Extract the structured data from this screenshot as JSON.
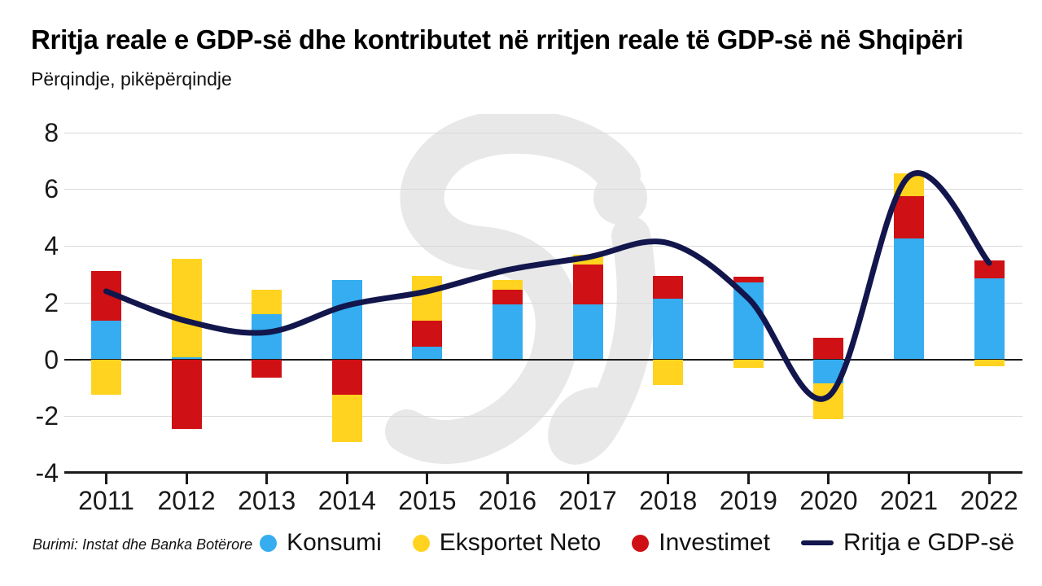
{
  "header": {
    "title": "Rritja reale e GDP-së dhe kontributet në rritjen reale të GDP-së në Shqipëri",
    "subtitle": "Përqindje, pikëpërqindje"
  },
  "footer": {
    "source": "Burimi: Instat dhe Banka Botërore"
  },
  "colors": {
    "konsumi": "#35ADF0",
    "investimet": "#CF1014",
    "eksportet_neto": "#FFD31F",
    "gdp_line": "#12164C",
    "gridline": "#D9D9D9",
    "axis": "#1a1a1a",
    "watermark": "#E8E8E8"
  },
  "legend": [
    {
      "label": "Konsumi",
      "marker": "dot",
      "color_key": "konsumi"
    },
    {
      "label": "Eksportet Neto",
      "marker": "dot",
      "color_key": "eksportet_neto"
    },
    {
      "label": "Investimet",
      "marker": "dot",
      "color_key": "investimet"
    },
    {
      "label": "Rritja e GDP-së",
      "marker": "line",
      "color_key": "gdp_line"
    }
  ],
  "chart_data": [
    {
      "type": "bar",
      "stacked": true,
      "title": "Rritja reale e GDP-së dhe kontributet në rritjen reale të GDP-së në Shqipëri",
      "xlabel": "",
      "ylabel": "Përqindje, pikëpërqindje",
      "ylim": [
        -4,
        8
      ],
      "y_ticks": [
        8,
        6,
        4,
        2,
        0,
        -2,
        -4
      ],
      "grid": true,
      "legend_position": "bottom",
      "categories": [
        "2011",
        "2012",
        "2013",
        "2014",
        "2015",
        "2016",
        "2017",
        "2018",
        "2019",
        "2020",
        "2021",
        "2022"
      ],
      "series": [
        {
          "name": "Konsumi",
          "color_key": "konsumi",
          "values": [
            1.35,
            0.07,
            1.6,
            2.8,
            0.45,
            1.95,
            1.95,
            2.15,
            2.7,
            -0.85,
            4.25,
            2.85
          ]
        },
        {
          "name": "Investimet",
          "color_key": "investimet",
          "values": [
            1.75,
            -2.45,
            -0.65,
            -1.25,
            0.9,
            0.5,
            1.4,
            0.8,
            0.2,
            0.75,
            1.5,
            0.65
          ]
        },
        {
          "name": "Eksportet Neto",
          "color_key": "eksportet_neto",
          "values": [
            -1.25,
            3.48,
            0.85,
            -1.65,
            1.6,
            0.35,
            0.35,
            -0.9,
            -0.3,
            -1.25,
            0.8,
            -0.25
          ]
        }
      ]
    },
    {
      "type": "line",
      "name": "Rritja e GDP-së",
      "color_key": "gdp_line",
      "categories": [
        "2011",
        "2012",
        "2013",
        "2014",
        "2015",
        "2016",
        "2017",
        "2018",
        "2019",
        "2020",
        "2021",
        "2022"
      ],
      "values": [
        2.4,
        1.35,
        0.95,
        1.9,
        2.4,
        3.15,
        3.6,
        4.1,
        2.15,
        -1.3,
        6.45,
        3.4
      ]
    }
  ]
}
